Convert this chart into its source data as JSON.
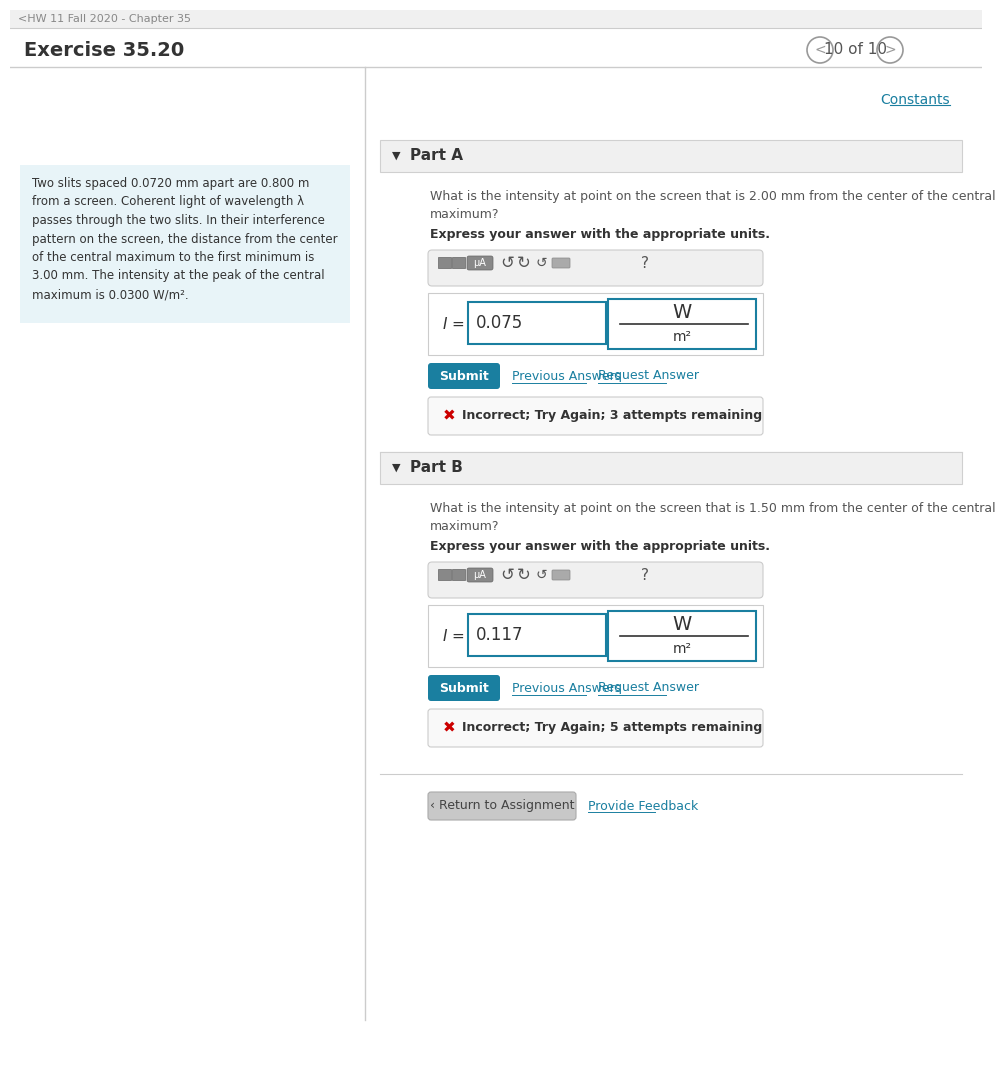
{
  "bg_color": "#ffffff",
  "header_text": "<HW 11 Fall 2020 - Chapter 35",
  "title": "Exercise 35.20",
  "page_info": "10 of 10",
  "constants_link": "Constants",
  "left_panel_bg": "#e8f4f8",
  "left_panel_text": "Two slits spaced 0.0720 mm apart are 0.800 m\nfrom a screen. Coherent light of wavelength λ\npasses through the two slits. In their interference\npattern on the screen, the distance from the center\nof the central maximum to the first minimum is\n3.00 mm. The intensity at the peak of the central\nmaximum is 0.0300 W/m².",
  "part_a_label": "Part A",
  "part_a_question": "What is the intensity at point on the screen that is 2.00 mm from the center of the central\nmaximum?",
  "part_a_express": "Express your answer with the appropriate units.",
  "part_a_answer": "0.075",
  "part_a_unit_num": "W",
  "part_a_unit_den": "m²",
  "part_a_error": "Incorrect; Try Again; 3 attempts remaining",
  "part_b_label": "Part B",
  "part_b_question": "What is the intensity at point on the screen that is 1.50 mm from the center of the central\nmaximum?",
  "part_b_express": "Express your answer with the appropriate units.",
  "part_b_answer": "0.117",
  "part_b_unit_num": "W",
  "part_b_unit_den": "m²",
  "part_b_error": "Incorrect; Try Again; 5 attempts remaining",
  "submit_color": "#1a7fa0",
  "submit_text": "Submit",
  "prev_answers_text": "Previous Answers",
  "request_answer_text": "Request Answer",
  "return_text": "‹ Return to Assignment",
  "feedback_text": "Provide Feedback",
  "link_color": "#1a7fa0",
  "error_x_color": "#cc0000",
  "input_border_color": "#1a7fa0",
  "unit_border_color": "#1a7fa0",
  "panel_border_color": "#cccccc",
  "error_panel_bg": "#f9f9f9"
}
